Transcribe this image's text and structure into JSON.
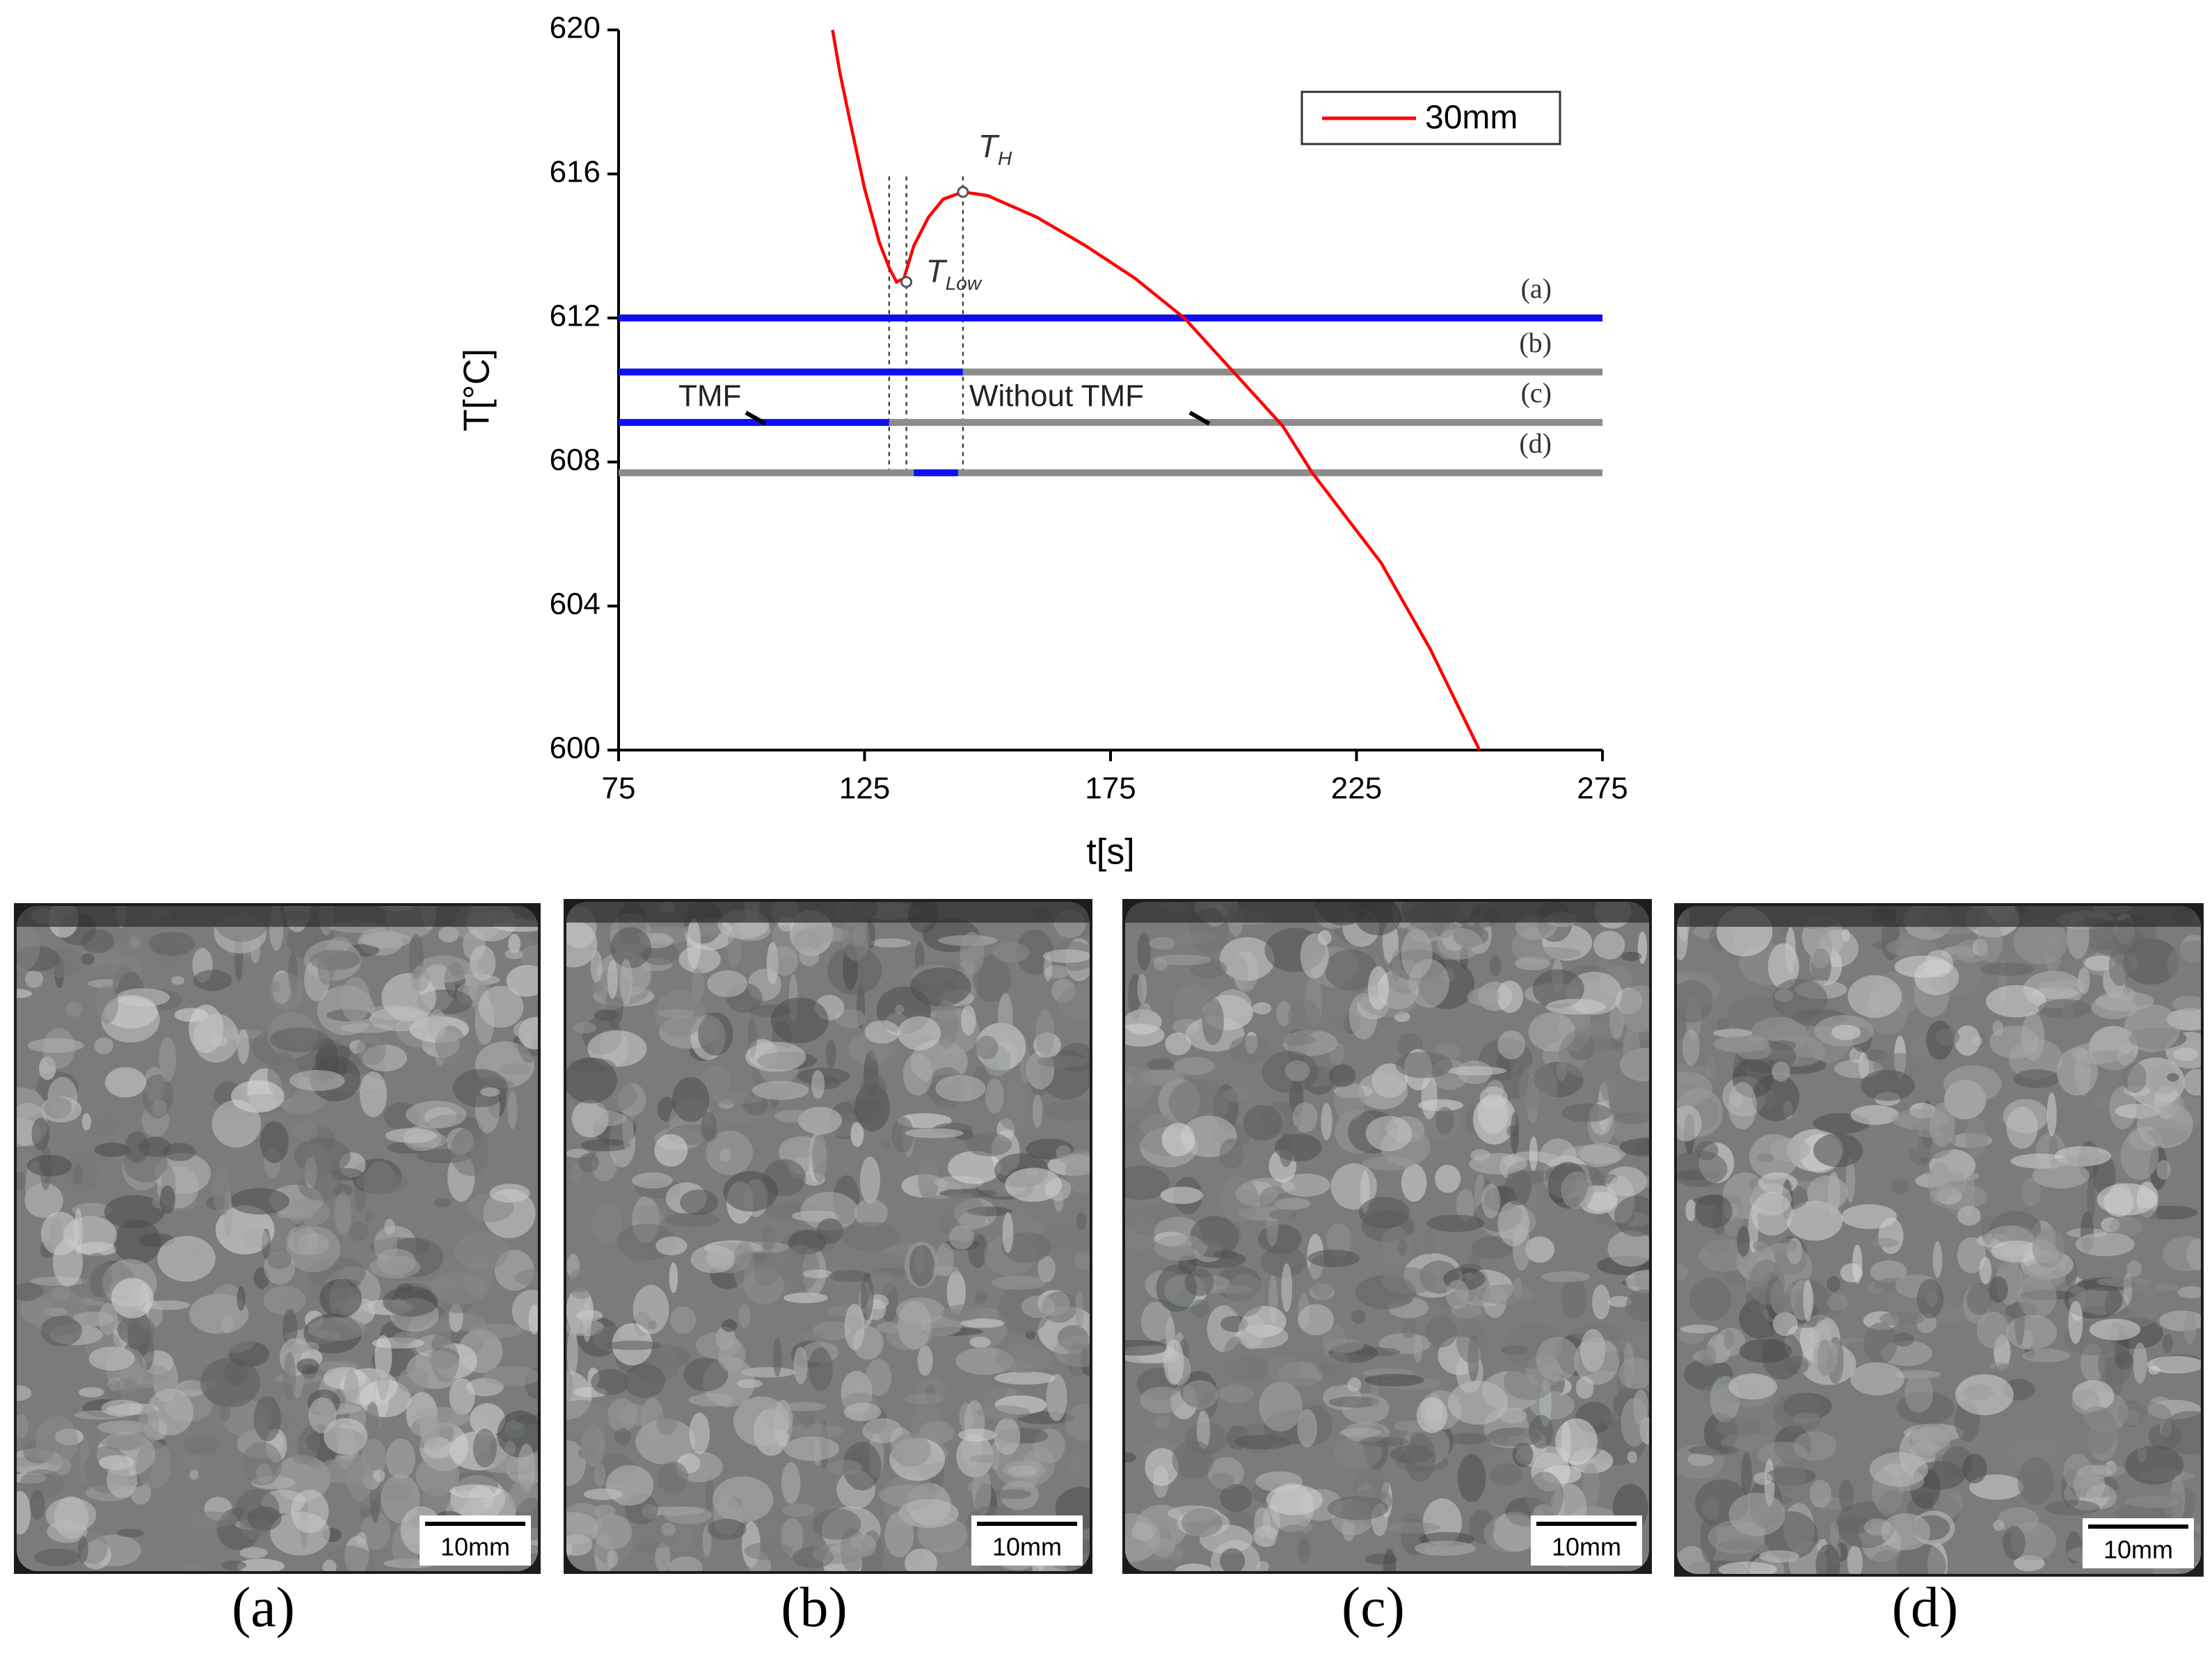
{
  "chart_data": {
    "type": "line",
    "x_label": "t[s]",
    "y_label": "T[°C]",
    "xlim": [
      75,
      275
    ],
    "xticks": [
      75,
      125,
      175,
      225,
      275
    ],
    "ylim": [
      600,
      620
    ],
    "yticks": [
      600,
      604,
      608,
      612,
      616,
      620
    ],
    "legend": "upper right",
    "series": [
      {
        "name": "30mm",
        "color": "#ff0000",
        "x": [
          118.5,
          120,
          122,
          125,
          128,
          130,
          131.5,
          133,
          135,
          138,
          141,
          145,
          150,
          160,
          170,
          180,
          190,
          200,
          210,
          216,
          230,
          240,
          250
        ],
        "values": [
          620,
          618.8,
          617.5,
          615.6,
          614.1,
          613.4,
          613.0,
          613.1,
          614.0,
          614.8,
          615.3,
          615.5,
          615.4,
          614.8,
          614.0,
          613.1,
          612.0,
          610.5,
          609.0,
          607.7,
          605.2,
          602.8,
          600
        ]
      }
    ],
    "levels": [
      {
        "label": "(a)",
        "value": 612,
        "segments": [
          {
            "start": 75,
            "end": 275,
            "color": "#1010ee"
          }
        ]
      },
      {
        "label": "(b)",
        "value": 610.5,
        "segments": [
          {
            "start": 75,
            "end": 145,
            "color": "#1010ee"
          },
          {
            "start": 145,
            "end": 275,
            "color": "#8c8c8c"
          }
        ]
      },
      {
        "label": "(c)",
        "value": 609.1,
        "segments": [
          {
            "start": 75,
            "end": 130,
            "color": "#1010ee"
          },
          {
            "start": 130,
            "end": 275,
            "color": "#8c8c8c"
          }
        ]
      },
      {
        "label": "(d)",
        "value": 607.7,
        "segments": [
          {
            "start": 75,
            "end": 275,
            "color": "#8c8c8c"
          },
          {
            "start": 135,
            "end": 144,
            "color": "#1010ee"
          }
        ]
      }
    ],
    "guides": {
      "x": [
        130,
        133.5,
        145
      ],
      "from": 607.7,
      "to": 616
    },
    "points": [
      {
        "x": 133.5,
        "y": 613,
        "label": "T",
        "sub": "Low"
      },
      {
        "x": 145,
        "y": 615.5,
        "label": "T",
        "sub": "H"
      }
    ],
    "annotations": [
      "TMF",
      "Without TMF"
    ]
  },
  "panels": [
    {
      "label": "(a)",
      "scale_bar": "10mm"
    },
    {
      "label": "(b)",
      "scale_bar": "10mm"
    },
    {
      "label": "(c)",
      "scale_bar": "10mm"
    },
    {
      "label": "(d)",
      "scale_bar": "10mm"
    }
  ]
}
